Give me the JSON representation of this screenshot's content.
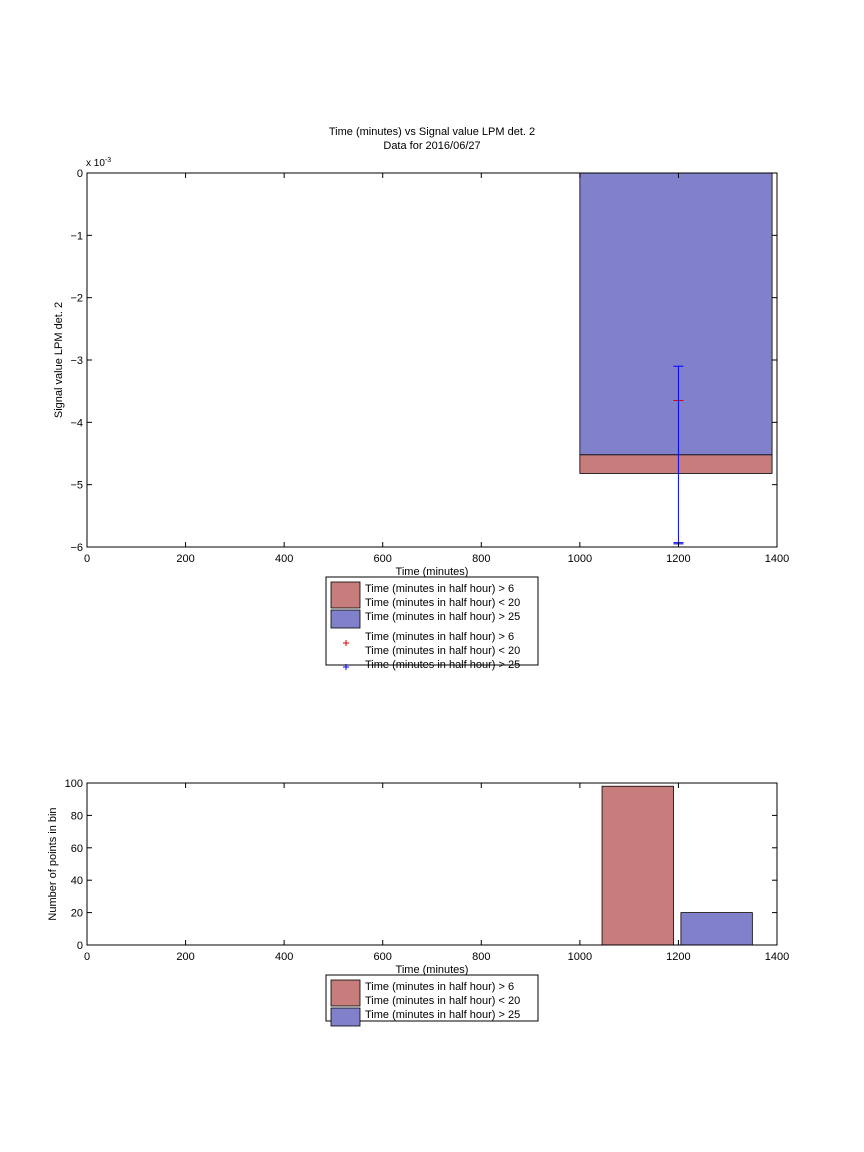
{
  "chart_data": [
    {
      "type": "bar",
      "title": "Time (minutes) vs Signal value LPM det. 2",
      "subtitle": "Data for 2016/06/27",
      "xlabel": "Time (minutes)",
      "ylabel": "Signal value LPM det. 2",
      "y_exponent_label": "x 10",
      "y_exponent_power": "-3",
      "xlim": [
        0,
        1400
      ],
      "ylim": [
        -6,
        0
      ],
      "x_ticks": [
        0,
        200,
        400,
        600,
        800,
        1000,
        1200,
        1400
      ],
      "y_ticks": [
        -6,
        -5,
        -4,
        -3,
        -2,
        -1,
        0
      ],
      "bars": [
        {
          "x_start": 1000,
          "x_end": 1390,
          "y_top": -4.52,
          "y_bottom": -4.82,
          "color": "#c87d7d",
          "series": 0
        },
        {
          "x_start": 1000,
          "x_end": 1390,
          "y_top": 0,
          "y_bottom": -4.52,
          "color": "#8181cb",
          "series": 1
        }
      ],
      "errorbars": [
        {
          "x": 1200,
          "y": -3.65,
          "color": "#e00000",
          "series": 0
        },
        {
          "x": 1200,
          "y": -5.93,
          "low": -5.95,
          "high": -3.1,
          "color": "#0000ff",
          "series": 1
        }
      ],
      "legend": [
        {
          "type": "patch",
          "color": "#c87d7d",
          "lines": [
            "Time (minutes in half hour) > 6",
            "Time (minutes in half hour) < 20"
          ]
        },
        {
          "type": "patch",
          "color": "#8181cb",
          "lines": [
            "Time (minutes in half hour) > 25"
          ]
        },
        {
          "type": "marker",
          "color": "#e00000",
          "lines": [
            "Time (minutes in half hour) > 6",
            "Time (minutes in half hour) < 20"
          ]
        },
        {
          "type": "marker",
          "color": "#0000ff",
          "lines": [
            "Time (minutes in half hour) > 25"
          ]
        }
      ]
    },
    {
      "type": "bar",
      "xlabel": "Time (minutes)",
      "ylabel": "Number of points in bin",
      "xlim": [
        0,
        1400
      ],
      "ylim": [
        0,
        100
      ],
      "x_ticks": [
        0,
        200,
        400,
        600,
        800,
        1000,
        1200,
        1400
      ],
      "y_ticks": [
        0,
        20,
        40,
        60,
        80,
        100
      ],
      "bars": [
        {
          "x_start": 1045,
          "x_end": 1190,
          "value": 98,
          "color": "#c87d7d"
        },
        {
          "x_start": 1205,
          "x_end": 1350,
          "value": 20,
          "color": "#8181cb"
        }
      ],
      "legend": [
        {
          "type": "patch",
          "color": "#c87d7d",
          "lines": [
            "Time (minutes in half hour) > 6",
            "Time (minutes in half hour) < 20"
          ]
        },
        {
          "type": "patch",
          "color": "#8181cb",
          "lines": [
            "Time (minutes in half hour) > 25"
          ]
        }
      ]
    }
  ]
}
